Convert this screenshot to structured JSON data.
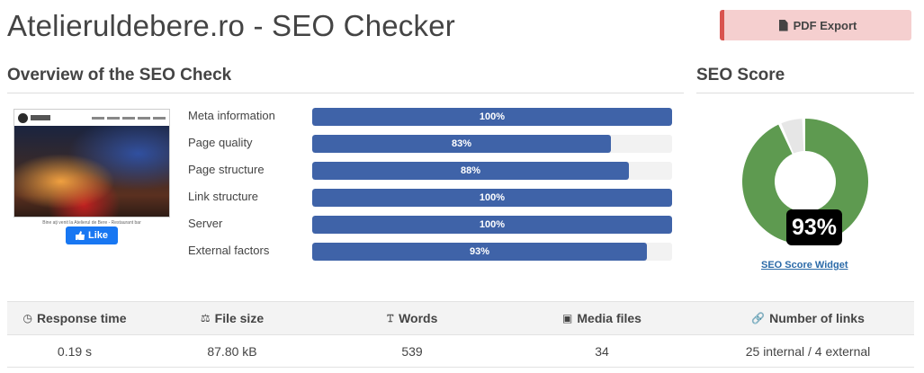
{
  "header": {
    "title": "Atelieruldebere.ro - SEO Checker",
    "pdf_export_label": "PDF Export",
    "pdf_icon": "file-pdf-icon"
  },
  "overview": {
    "title": "Overview of the SEO Check",
    "screenshot_caption": "Bine aţi venit la Atelierul de Bere - Restaurant bar",
    "like_label": "Like",
    "metrics": [
      {
        "label": "Meta information",
        "percent": 100,
        "text": "100%"
      },
      {
        "label": "Page quality",
        "percent": 83,
        "text": "83%"
      },
      {
        "label": "Page structure",
        "percent": 88,
        "text": "88%"
      },
      {
        "label": "Link structure",
        "percent": 100,
        "text": "100%"
      },
      {
        "label": "Server",
        "percent": 100,
        "text": "100%"
      },
      {
        "label": "External factors",
        "percent": 93,
        "text": "93%"
      }
    ],
    "bar_color": "#3f63a8"
  },
  "seo_score": {
    "title": "SEO Score",
    "value": 93,
    "text": "93%",
    "widget_link": "SEO Score Widget",
    "score_color": "#5e9a50",
    "remainder_color": "#e6e6e6"
  },
  "stats": {
    "headers": [
      {
        "label": "Response time",
        "icon": "clock-icon"
      },
      {
        "label": "File size",
        "icon": "scale-icon"
      },
      {
        "label": "Words",
        "icon": "text-icon"
      },
      {
        "label": "Media files",
        "icon": "image-icon"
      },
      {
        "label": "Number of links",
        "icon": "link-icon"
      }
    ],
    "values": [
      "0.19 s",
      "87.80 kB",
      "539",
      "34",
      "25 internal / 4 external"
    ]
  },
  "colors": {
    "pdf_button_bg": "#f5cfcf",
    "pdf_button_accent": "#d9534f",
    "like_button": "#1877f2"
  }
}
